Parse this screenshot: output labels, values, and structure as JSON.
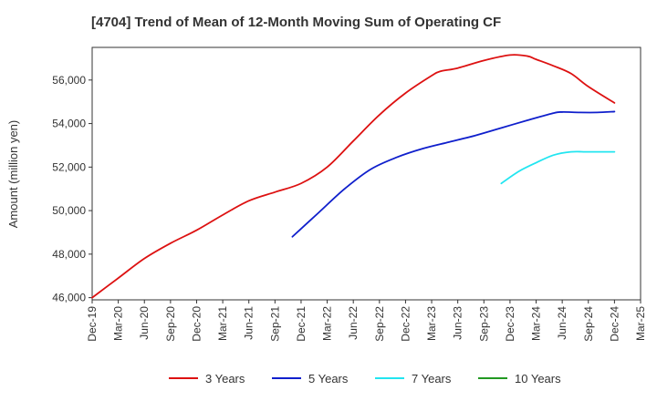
{
  "chart_data": {
    "type": "line",
    "title": "[4704]  Trend of Mean of 12-Month Moving Sum of Operating CF",
    "xlabel": "",
    "ylabel": "Amount (million yen)",
    "ylim": [
      45900,
      57500
    ],
    "y_ticks": [
      46000,
      48000,
      50000,
      52000,
      54000,
      56000
    ],
    "y_tick_labels": [
      "46,000",
      "48,000",
      "50,000",
      "52,000",
      "54,000",
      "56,000"
    ],
    "x_ticks": [
      "Dec-19",
      "Mar-20",
      "Jun-20",
      "Sep-20",
      "Dec-20",
      "Mar-21",
      "Jun-21",
      "Sep-21",
      "Dec-21",
      "Mar-22",
      "Jun-22",
      "Sep-22",
      "Dec-22",
      "Mar-23",
      "Jun-23",
      "Sep-23",
      "Dec-23",
      "Mar-24",
      "Jun-24",
      "Sep-24",
      "Dec-24",
      "Mar-25"
    ],
    "x_range_months": [
      0,
      63
    ],
    "grid": true,
    "legend_position": "bottom",
    "series": [
      {
        "name": "3 Years",
        "color": "#dd1111",
        "x_months": [
          0,
          3,
          6,
          9,
          12,
          15,
          18,
          21,
          24,
          27,
          30,
          33,
          36,
          39,
          40,
          42,
          45,
          48,
          50,
          51,
          53,
          55,
          57,
          60
        ],
        "values": [
          46000,
          46900,
          47800,
          48500,
          49100,
          49800,
          50450,
          50850,
          51250,
          52000,
          53200,
          54400,
          55400,
          56200,
          56400,
          56550,
          56900,
          57150,
          57100,
          56950,
          56650,
          56300,
          55700,
          54950
        ]
      },
      {
        "name": "5 Years",
        "color": "#0f1fcc",
        "x_months": [
          23,
          26,
          29,
          32,
          35,
          38,
          41,
          44,
          47,
          50,
          53,
          54,
          56,
          58,
          60
        ],
        "values": [
          48800,
          49900,
          51000,
          51900,
          52450,
          52850,
          53150,
          53450,
          53800,
          54150,
          54480,
          54530,
          54510,
          54510,
          54550
        ]
      },
      {
        "name": "7 Years",
        "color": "#22e5f0",
        "x_months": [
          47,
          49,
          51,
          53,
          55,
          57,
          60
        ],
        "values": [
          51250,
          51800,
          52200,
          52550,
          52700,
          52700,
          52700
        ]
      },
      {
        "name": "10 Years",
        "color": "#229922",
        "x_months": [],
        "values": []
      }
    ]
  }
}
